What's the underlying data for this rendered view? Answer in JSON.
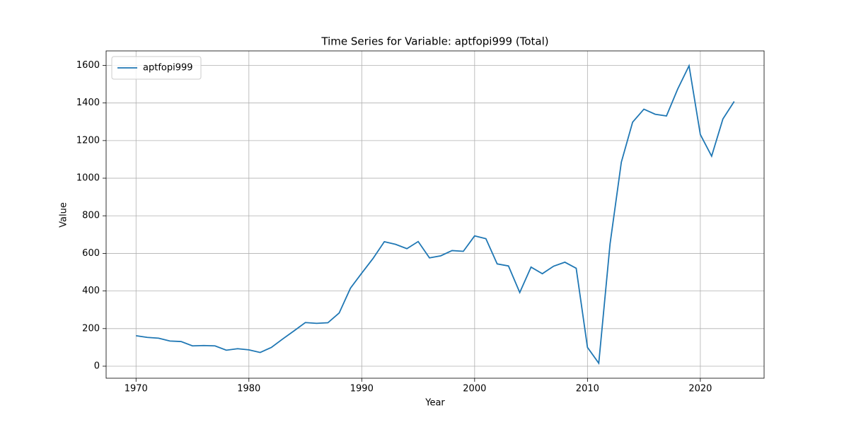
{
  "chart_data": {
    "type": "line",
    "title": "Time Series for Variable: aptfopi999 (Total)",
    "x_label": "Year",
    "y_label": "Value",
    "x": [
      1970,
      1971,
      1972,
      1973,
      1974,
      1975,
      1976,
      1977,
      1978,
      1979,
      1980,
      1981,
      1982,
      1983,
      1984,
      1985,
      1986,
      1987,
      1988,
      1989,
      1990,
      1991,
      1992,
      1993,
      1994,
      1995,
      1996,
      1997,
      1998,
      1999,
      2000,
      2001,
      2002,
      2003,
      2004,
      2005,
      2006,
      2007,
      2008,
      2009,
      2010,
      2011,
      2012,
      2013,
      2014,
      2015,
      2016,
      2017,
      2018,
      2019,
      2020,
      2021,
      2022,
      2023
    ],
    "series": [
      {
        "name": "aptfopi999",
        "color": "#1f77b4",
        "values": [
          162,
          153,
          149,
          134,
          131,
          108,
          110,
          108,
          85,
          93,
          87,
          73,
          100,
          145,
          188,
          232,
          228,
          231,
          283,
          415,
          495,
          573,
          662,
          648,
          625,
          663,
          576,
          587,
          615,
          611,
          693,
          678,
          544,
          533,
          392,
          527,
          492,
          532,
          553,
          521,
          100,
          16,
          650,
          1085,
          1298,
          1367,
          1340,
          1331,
          1475,
          1598,
          1232,
          1117,
          1315,
          1408
        ]
      }
    ],
    "xlim": [
      1967.35,
      2025.65
    ],
    "xticks": [
      1970,
      1980,
      1990,
      2000,
      2010,
      2020
    ],
    "ylim": [
      -64,
      1677
    ],
    "yticks": [
      0,
      200,
      400,
      600,
      800,
      1000,
      1200,
      1400,
      1600
    ],
    "grid": true,
    "legend": "upper left"
  }
}
